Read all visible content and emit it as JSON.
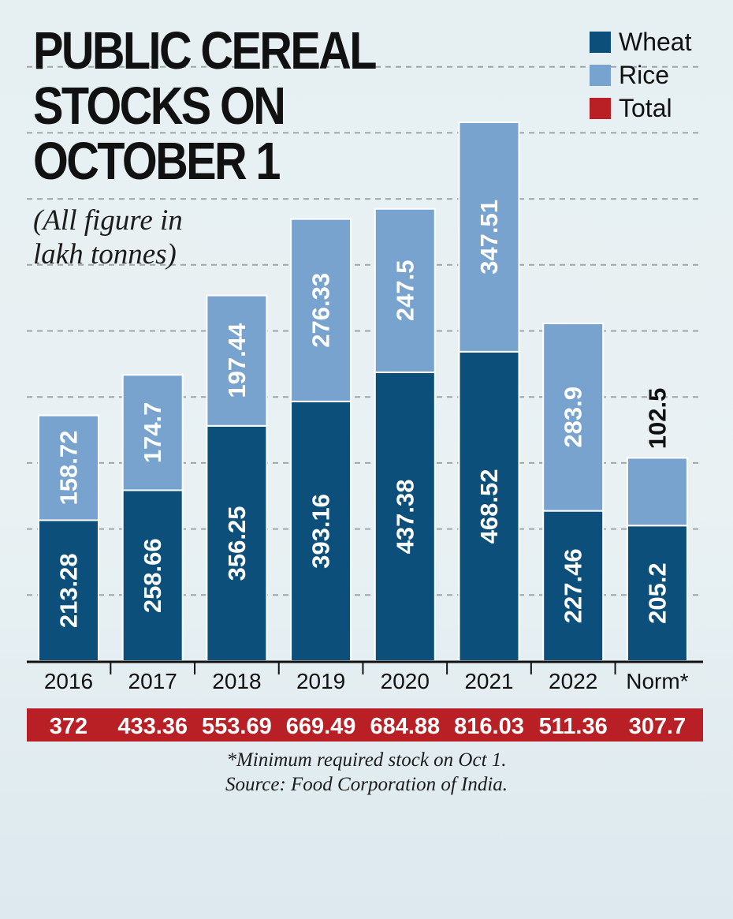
{
  "title": "PUBLIC CEREAL\nSTOCKS ON\nOCTOBER 1",
  "subtitle": "(All figure in lakh tonnes)",
  "footnote": "*Minimum required stock on Oct 1.",
  "source": "Source: Food Corporation of India.",
  "colors": {
    "wheat": "#0b4f7a",
    "rice": "#79a3cf",
    "total": "#b82025"
  },
  "chart_data": {
    "type": "bar",
    "stacked": true,
    "categories": [
      "2016",
      "2017",
      "2018",
      "2019",
      "2020",
      "2021",
      "2022",
      "Norm*"
    ],
    "series": [
      {
        "name": "Wheat",
        "values": [
          213.28,
          258.66,
          356.25,
          393.16,
          437.38,
          468.52,
          227.46,
          205.2
        ],
        "labels": [
          "213.28",
          "258.66",
          "356.25",
          "393.16",
          "437.38",
          "468.52",
          "227.46",
          "205.2"
        ]
      },
      {
        "name": "Rice",
        "values": [
          158.72,
          174.7,
          197.44,
          276.33,
          247.5,
          347.51,
          283.9,
          102.5
        ],
        "labels": [
          "158.72",
          "174.7",
          "197.44",
          "276.33",
          "247.5",
          "347.51",
          "283.9",
          "102.5"
        ]
      }
    ],
    "totals": {
      "name": "Total",
      "values": [
        "372",
        "433.36",
        "553.69",
        "669.49",
        "684.88",
        "816.03",
        "511.36",
        "307.7"
      ]
    },
    "ylim": [
      0,
      900
    ],
    "grid": true,
    "legend_position": "top-right"
  }
}
